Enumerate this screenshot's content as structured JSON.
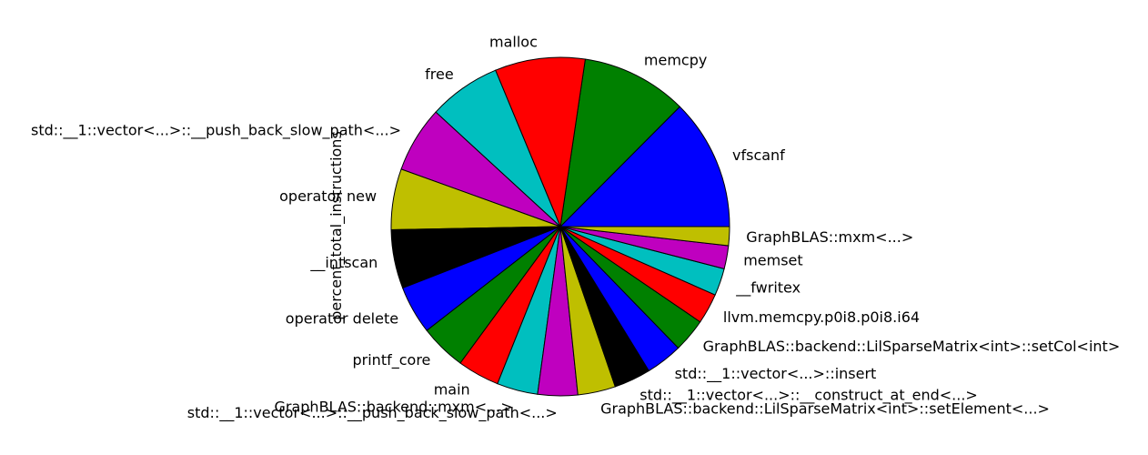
{
  "chart_data": {
    "type": "pie",
    "ylabel": "percent_total_instructions",
    "start_angle": "east",
    "direction": "counterclockwise",
    "slices": [
      {
        "label": "vfscanf",
        "value": 12.5,
        "color": "#0000ff"
      },
      {
        "label": "memcpy",
        "value": 10.1,
        "color": "#008000"
      },
      {
        "label": "malloc",
        "value": 8.6,
        "color": "#ff0000"
      },
      {
        "label": "free",
        "value": 6.9,
        "color": "#00bfbf"
      },
      {
        "label": "std::__1::vector<...>::__push_back_slow_path<...>",
        "value": 6.3,
        "color": "#bf00bf"
      },
      {
        "label": "operator new",
        "value": 5.8,
        "color": "#bfbf00"
      },
      {
        "label": "__intscan",
        "value": 5.6,
        "color": "#000000"
      },
      {
        "label": "operator delete",
        "value": 4.6,
        "color": "#0000ff"
      },
      {
        "label": "printf_core",
        "value": 4.4,
        "color": "#008000"
      },
      {
        "label": "main",
        "value": 4.0,
        "color": "#ff0000"
      },
      {
        "label": "GraphBLAS::backend::mxm<...>",
        "value": 3.9,
        "color": "#00bfbf"
      },
      {
        "label": "std::__1::vector<...>::__push_back_slow_path<...>",
        "value": 3.8,
        "color": "#bf00bf"
      },
      {
        "label": "GraphBLAS::backend::LilSparseMatrix<int>::setElement<...>",
        "value": 3.6,
        "color": "#bfbf00"
      },
      {
        "label": "std::__1::vector<...>::__construct_at_end<...>",
        "value": 3.5,
        "color": "#000000"
      },
      {
        "label": "std::__1::vector<...>::insert",
        "value": 3.5,
        "color": "#0000ff"
      },
      {
        "label": "GraphBLAS::backend::LilSparseMatrix<int>::setCol<int>",
        "value": 3.2,
        "color": "#008000"
      },
      {
        "label": "llvm.memcpy.p0i8.p0i8.i64",
        "value": 2.9,
        "color": "#ff0000"
      },
      {
        "label": "__fwritex",
        "value": 2.6,
        "color": "#00bfbf"
      },
      {
        "label": "memset",
        "value": 2.2,
        "color": "#bf00bf"
      },
      {
        "label": "GraphBLAS::mxm<...>",
        "value": 1.8,
        "color": "#bfbf00"
      }
    ]
  }
}
